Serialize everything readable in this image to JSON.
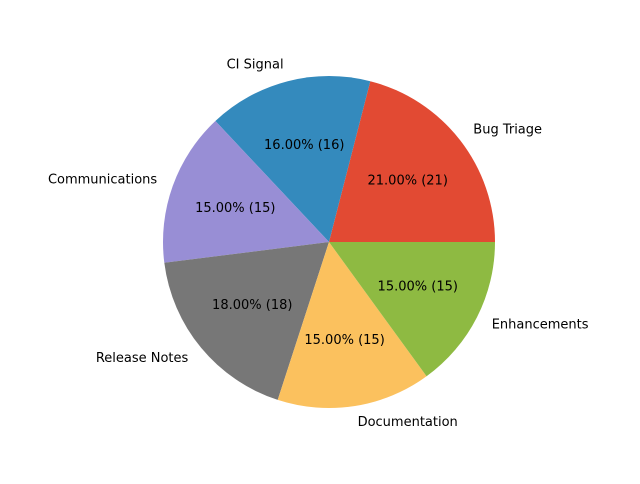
{
  "chart_data": {
    "type": "pie",
    "title": "",
    "categories": [
      "Bug Triage",
      "CI Signal",
      "Communications",
      "Release Notes",
      "Documentation",
      "Enhancements"
    ],
    "values": [
      21,
      16,
      15,
      18,
      15,
      15
    ],
    "percent_labels": [
      "21.00%  (21)",
      "16.00%  (16)",
      "15.00%  (15)",
      "18.00%  (18)",
      "15.00%  (15)",
      "15.00%  (15)"
    ],
    "colors": [
      "#E24A33",
      "#348ABD",
      "#988ED5",
      "#777777",
      "#FBC15E",
      "#8EBA42"
    ],
    "start_angle_deg": 0,
    "direction": "counterclockwise",
    "legend": "none"
  }
}
